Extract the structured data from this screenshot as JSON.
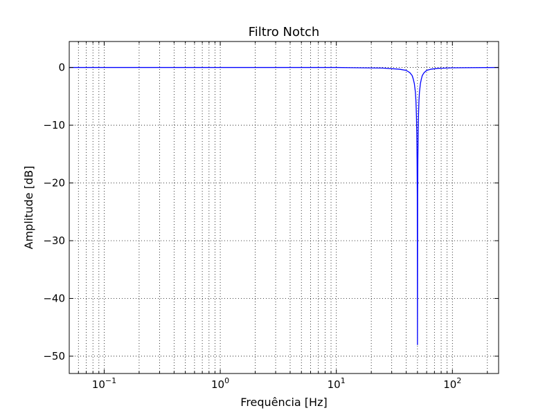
{
  "chart_data": {
    "type": "line",
    "title": "Filtro Notch",
    "xlabel": "Frequência [Hz]",
    "ylabel": "Amplitude [dB]",
    "x_scale": "log",
    "xlim": [
      0.05,
      250
    ],
    "ylim": [
      -53,
      4.5
    ],
    "x_ticks": [
      {
        "value": 0.1,
        "base": "10",
        "exp": "−1"
      },
      {
        "value": 1,
        "base": "10",
        "exp": "0"
      },
      {
        "value": 10,
        "base": "10",
        "exp": "1"
      },
      {
        "value": 100,
        "base": "10",
        "exp": "2"
      }
    ],
    "y_ticks": [
      {
        "value": 0,
        "label": "0"
      },
      {
        "value": -10,
        "label": "−10"
      },
      {
        "value": -20,
        "label": "−20"
      },
      {
        "value": -30,
        "label": "−30"
      },
      {
        "value": -40,
        "label": "−40"
      },
      {
        "value": -50,
        "label": "−50"
      }
    ],
    "grid": true,
    "grid_minor": true,
    "series": [
      {
        "color": "#0000ff",
        "x": [
          0.05,
          0.1,
          1,
          10,
          25,
          35,
          40,
          43,
          45,
          46,
          47,
          48,
          48.5,
          49,
          49.3,
          49.6,
          49.8,
          50,
          50.2,
          50.4,
          50.7,
          51,
          51.5,
          52,
          53,
          54,
          55,
          57,
          60,
          65,
          75,
          100,
          250
        ],
        "y": [
          0,
          0,
          0,
          0,
          -0.1,
          -0.3,
          -0.5,
          -0.9,
          -1.4,
          -2.0,
          -2.8,
          -4.3,
          -5.8,
          -8.5,
          -11.2,
          -16,
          -22,
          -48,
          -22,
          -16,
          -11.2,
          -8.5,
          -5.8,
          -4.3,
          -2.8,
          -2.0,
          -1.4,
          -0.9,
          -0.5,
          -0.3,
          -0.15,
          -0.05,
          0
        ]
      }
    ]
  }
}
